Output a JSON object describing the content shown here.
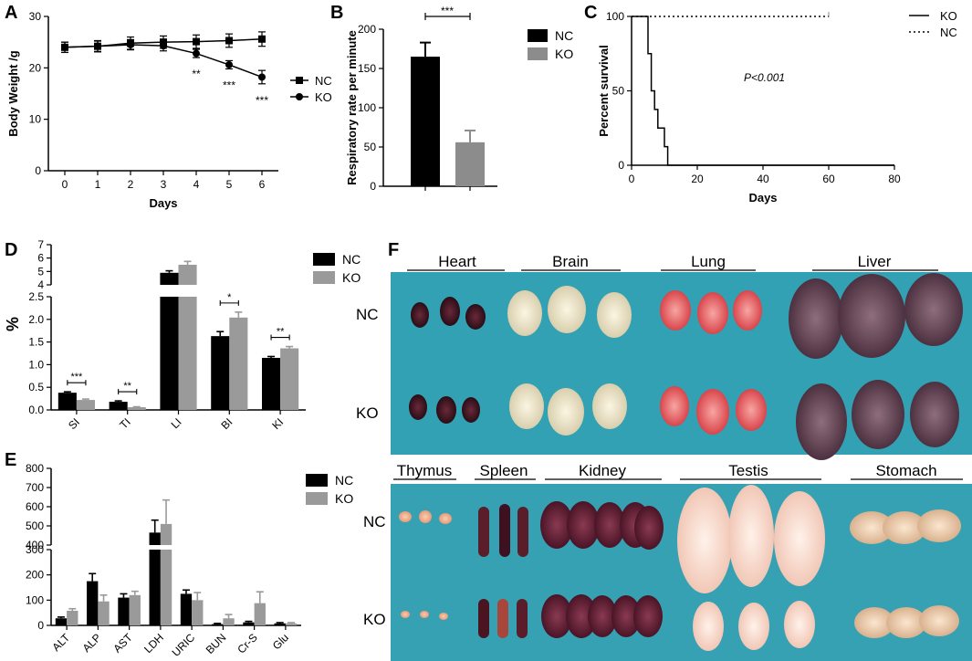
{
  "panel_letters": [
    "A",
    "B",
    "C",
    "D",
    "E",
    "F"
  ],
  "chart_data": [
    {
      "id": "A",
      "type": "line",
      "title": "",
      "xlabel": "Days",
      "ylabel": "Body Weight /g",
      "x": [
        0,
        1,
        2,
        3,
        4,
        5,
        6
      ],
      "xlim": [
        -0.5,
        6.5
      ],
      "ylim": [
        0,
        30
      ],
      "yticks": [
        0,
        10,
        20,
        30
      ],
      "series": [
        {
          "name": "NC",
          "marker": "square",
          "values": [
            24,
            24.2,
            24.8,
            25,
            25.1,
            25.3,
            25.6
          ],
          "errors": [
            1,
            1.1,
            1.2,
            1.2,
            1.3,
            1.3,
            1.4
          ]
        },
        {
          "name": "KO",
          "marker": "circle",
          "values": [
            24,
            24.2,
            24.5,
            24.3,
            22.8,
            20.6,
            18.2
          ],
          "errors": [
            1,
            1,
            1,
            1,
            0.8,
            0.8,
            1.3
          ]
        }
      ],
      "annotations": [
        {
          "x": 4,
          "text": "**"
        },
        {
          "x": 5,
          "text": "***"
        },
        {
          "x": 6,
          "text": "***"
        }
      ]
    },
    {
      "id": "B",
      "type": "bar",
      "ylabel": "Respiratory rate per minute",
      "ylim": [
        0,
        200
      ],
      "yticks": [
        0,
        50,
        100,
        150,
        200
      ],
      "categories": [
        "NC",
        "KO"
      ],
      "values": [
        165,
        56
      ],
      "errors": [
        18,
        15
      ],
      "colors": [
        "#000000",
        "#8c8c8c"
      ],
      "significance": "***"
    },
    {
      "id": "C",
      "type": "line",
      "xlabel": "Days",
      "ylabel": "Percent survival",
      "xlim": [
        0,
        80
      ],
      "ylim": [
        0,
        100
      ],
      "xticks": [
        0,
        20,
        40,
        60,
        80
      ],
      "yticks": [
        0,
        50,
        100
      ],
      "series": [
        {
          "name": "KO",
          "style": "solid",
          "steps": [
            [
              0,
              100
            ],
            [
              5,
              100
            ],
            [
              5,
              75
            ],
            [
              6,
              75
            ],
            [
              6,
              50
            ],
            [
              7,
              50
            ],
            [
              7,
              37.5
            ],
            [
              8,
              37.5
            ],
            [
              8,
              25
            ],
            [
              10,
              25
            ],
            [
              10,
              12.5
            ],
            [
              11,
              12.5
            ],
            [
              11,
              0
            ],
            [
              80,
              0
            ]
          ]
        },
        {
          "name": "NC",
          "style": "dotted",
          "steps": [
            [
              0,
              100
            ],
            [
              60,
              100
            ]
          ]
        }
      ],
      "annotation": "P<0.001"
    },
    {
      "id": "D",
      "type": "bar",
      "ylabel": "%",
      "categories": [
        "SI",
        "TI",
        "LI",
        "BI",
        "KI"
      ],
      "series": [
        {
          "name": "NC",
          "values": [
            0.38,
            0.18,
            4.9,
            1.63,
            1.15
          ],
          "errors": [
            0.02,
            0.02,
            0.15,
            0.1,
            0.03
          ]
        },
        {
          "name": "KO",
          "values": [
            0.22,
            0.06,
            5.5,
            2.04,
            1.36
          ],
          "errors": [
            0.02,
            0.01,
            0.25,
            0.12,
            0.04
          ]
        }
      ],
      "yticks_lower": [
        "0.0",
        "0.5",
        "1.0",
        "1.5",
        "2.0",
        "2.5"
      ],
      "yticks_upper": [
        "4",
        "5",
        "6",
        "7"
      ],
      "axis_break": [
        2.5,
        4
      ],
      "significance": [
        {
          "category": "SI",
          "text": "***"
        },
        {
          "category": "TI",
          "text": "**"
        },
        {
          "category": "BI",
          "text": "*"
        },
        {
          "category": "KI",
          "text": "**"
        }
      ]
    },
    {
      "id": "E",
      "type": "bar",
      "ylabel": "",
      "categories": [
        "ALT",
        "ALP",
        "AST",
        "LDH",
        "URIC",
        "BUN",
        "Cr-S",
        "Glu"
      ],
      "series": [
        {
          "name": "NC",
          "values": [
            28,
            175,
            110,
            465,
            125,
            5,
            12,
            8
          ],
          "errors": [
            5,
            30,
            15,
            65,
            15,
            3,
            4,
            3
          ]
        },
        {
          "name": "KO",
          "values": [
            58,
            95,
            120,
            510,
            100,
            28,
            88,
            8
          ],
          "errors": [
            8,
            25,
            15,
            125,
            30,
            15,
            45,
            3
          ]
        }
      ],
      "yticks_lower": [
        "0",
        "100",
        "200",
        "300"
      ],
      "yticks_upper": [
        "400",
        "500",
        "600",
        "700",
        "800"
      ],
      "axis_break": [
        300,
        400
      ]
    }
  ],
  "photo": {
    "top_labels": [
      "Heart",
      "Brain",
      "Lung",
      "Liver"
    ],
    "bottom_labels": [
      "Thymus",
      "Spleen",
      "Kidney",
      "Testis",
      "Stomach"
    ],
    "row_labels": [
      "NC",
      "KO"
    ]
  }
}
